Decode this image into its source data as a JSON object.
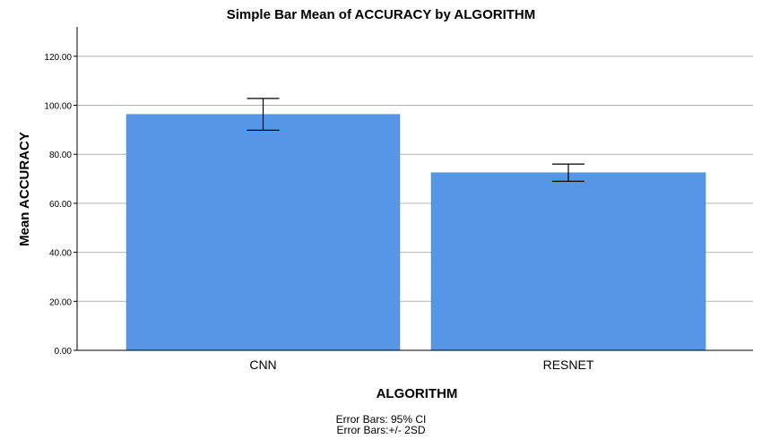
{
  "chart_data": {
    "type": "bar",
    "title": "Simple Bar Mean of ACCURACY by ALGORITHM",
    "xlabel": "ALGORITHM",
    "ylabel": "Mean ACCURACY",
    "categories": [
      "CNN",
      "RESNET"
    ],
    "values": [
      96.3,
      72.5
    ],
    "error_low": [
      89.8,
      69.0
    ],
    "error_high": [
      102.8,
      76.0
    ],
    "ylim": [
      0,
      132
    ],
    "yticks": [
      0,
      20,
      40,
      60,
      80,
      100,
      120
    ],
    "ytick_labels": [
      "0.00",
      "20.00",
      "40.00",
      "60.00",
      "80.00",
      "100.00",
      "120.00"
    ],
    "grid": true,
    "bar_color": "#5596e6",
    "footnotes": [
      "Error Bars: 95% CI",
      "Error Bars:+/- 2SD"
    ]
  }
}
